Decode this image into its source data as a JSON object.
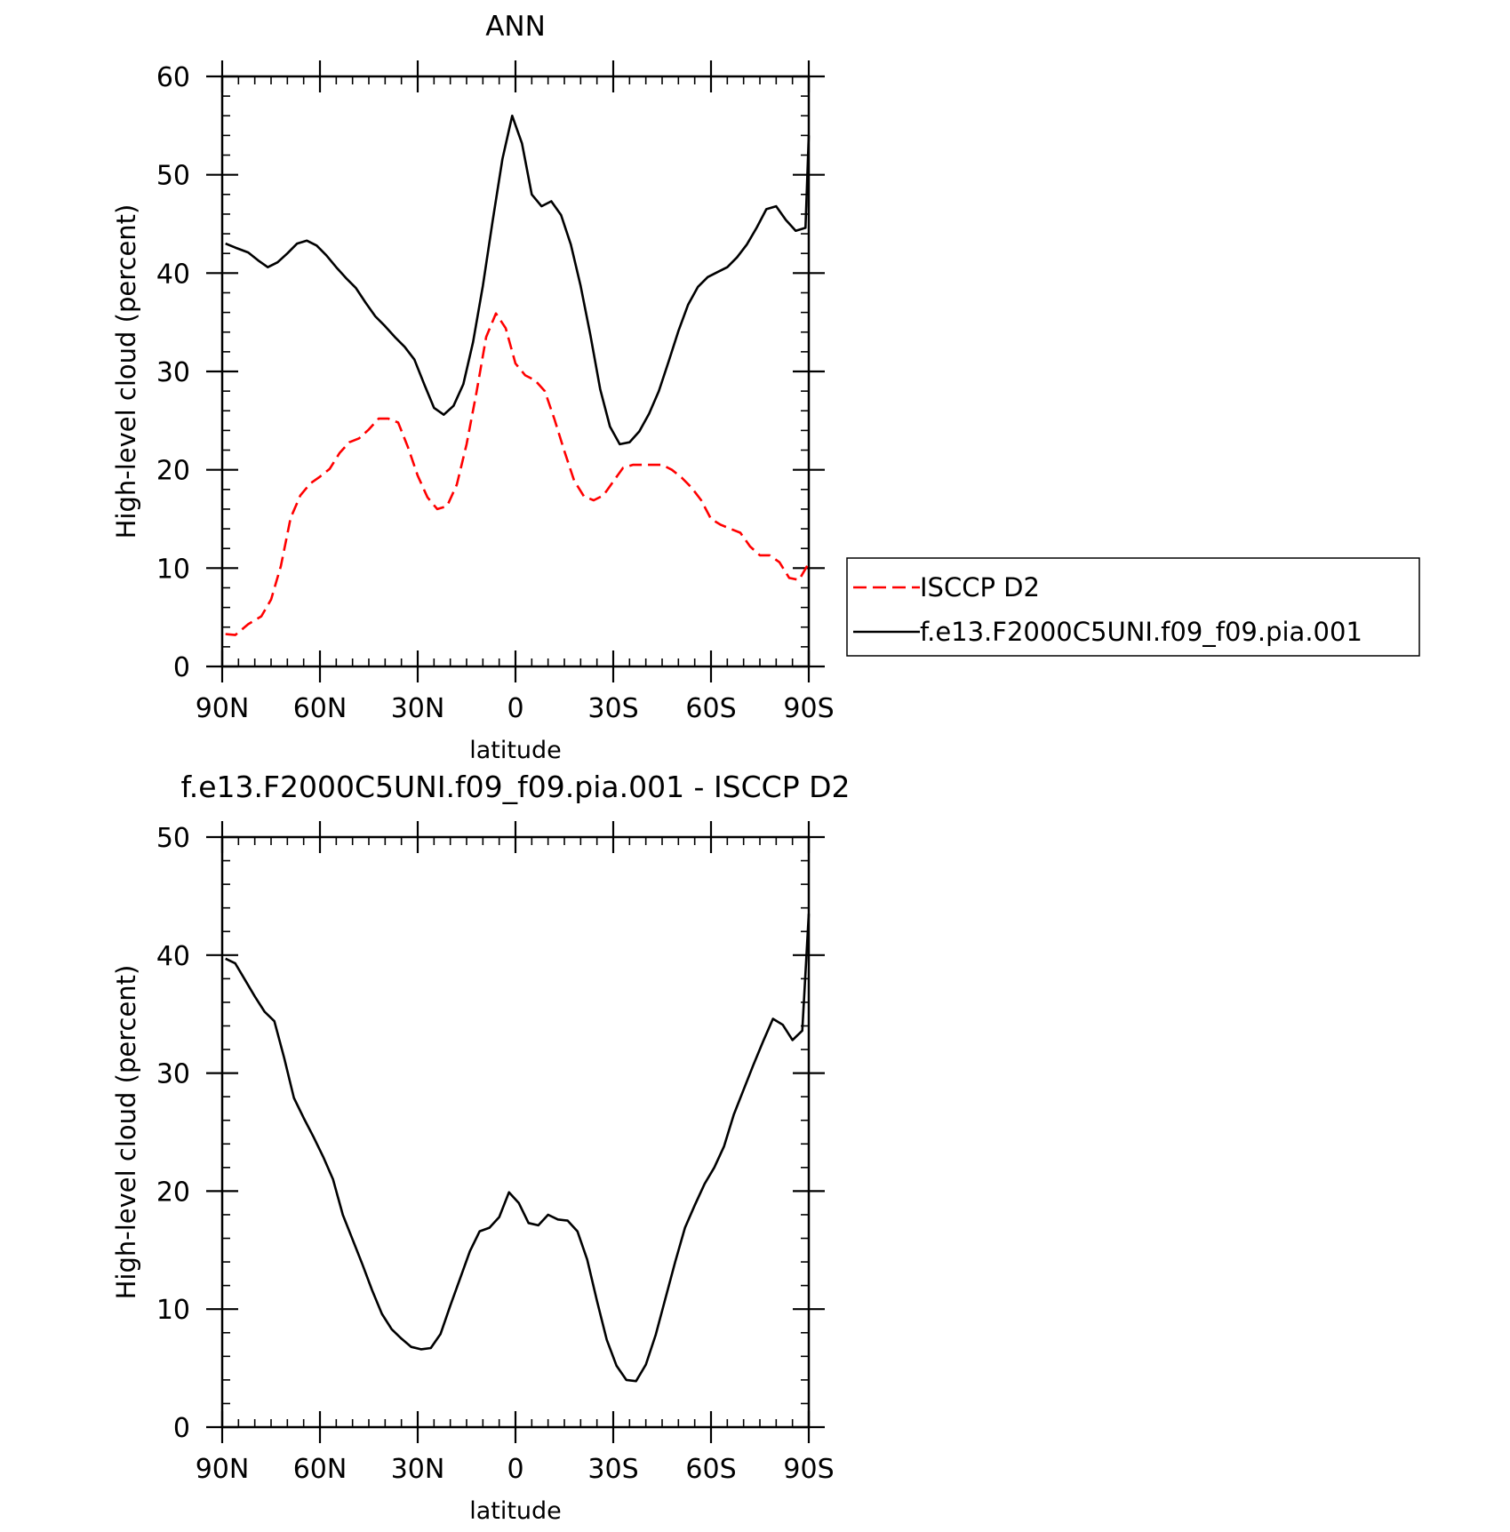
{
  "chart_data": [
    {
      "type": "line",
      "title": "ANN",
      "xlabel": "latitude",
      "ylabel": "High-level cloud (percent)",
      "xlim": [
        -90,
        90
      ],
      "ylim": [
        0,
        60
      ],
      "x_direction": "north-to-south",
      "yticks": [
        0,
        10,
        20,
        30,
        40,
        50,
        60
      ],
      "xticks": [
        -90,
        -60,
        -30,
        0,
        30,
        60,
        90
      ],
      "xtick_labels": [
        "90N",
        "60N",
        "30N",
        "0",
        "30S",
        "60S",
        "90S"
      ],
      "grid": false,
      "legend_position": "right",
      "series": [
        {
          "name": "ISCCP D2",
          "color": "#ff0000",
          "dash": "dashed",
          "points": [
            [
              -89,
              3.3
            ],
            [
              -86,
              3.2
            ],
            [
              -82,
              4.3
            ],
            [
              -78,
              5.1
            ],
            [
              -75,
              6.8
            ],
            [
              -72,
              10.2
            ],
            [
              -69,
              15.1
            ],
            [
              -66,
              17.4
            ],
            [
              -63,
              18.6
            ],
            [
              -60,
              19.3
            ],
            [
              -57,
              20.1
            ],
            [
              -54,
              21.7
            ],
            [
              -51,
              22.8
            ],
            [
              -48,
              23.2
            ],
            [
              -45,
              24.1
            ],
            [
              -42,
              25.2
            ],
            [
              -39,
              25.2
            ],
            [
              -36,
              24.8
            ],
            [
              -33,
              22.3
            ],
            [
              -30,
              19.4
            ],
            [
              -27,
              17.2
            ],
            [
              -24,
              16.0
            ],
            [
              -21,
              16.3
            ],
            [
              -18,
              18.5
            ],
            [
              -15,
              22.6
            ],
            [
              -12,
              27.8
            ],
            [
              -9,
              33.5
            ],
            [
              -6,
              35.9
            ],
            [
              -3,
              34.4
            ],
            [
              0,
              30.8
            ],
            [
              3,
              29.6
            ],
            [
              6,
              29.1
            ],
            [
              9,
              28.0
            ],
            [
              12,
              25.1
            ],
            [
              15,
              21.9
            ],
            [
              18,
              18.9
            ],
            [
              21,
              17.3
            ],
            [
              24,
              16.9
            ],
            [
              27,
              17.4
            ],
            [
              30,
              18.8
            ],
            [
              33,
              20.2
            ],
            [
              36,
              20.5
            ],
            [
              39,
              20.5
            ],
            [
              42,
              20.5
            ],
            [
              45,
              20.5
            ],
            [
              48,
              20.0
            ],
            [
              51,
              19.2
            ],
            [
              54,
              18.2
            ],
            [
              57,
              16.9
            ],
            [
              60,
              15.0
            ],
            [
              63,
              14.4
            ],
            [
              66,
              14.0
            ],
            [
              69,
              13.6
            ],
            [
              72,
              12.2
            ],
            [
              75,
              11.3
            ],
            [
              78,
              11.3
            ],
            [
              81,
              10.6
            ],
            [
              84,
              9.0
            ],
            [
              87,
              8.8
            ],
            [
              90,
              10.5
            ]
          ]
        },
        {
          "name": "f.e13.F2000C5UNI.f09_f09.pia.001",
          "color": "#000000",
          "dash": "solid",
          "points": [
            [
              -89,
              43.0
            ],
            [
              -86,
              42.6
            ],
            [
              -82,
              42.1
            ],
            [
              -79,
              41.3
            ],
            [
              -76,
              40.6
            ],
            [
              -73,
              41.1
            ],
            [
              -70,
              42.0
            ],
            [
              -67,
              43.0
            ],
            [
              -64,
              43.3
            ],
            [
              -61,
              42.8
            ],
            [
              -58,
              41.8
            ],
            [
              -55,
              40.6
            ],
            [
              -52,
              39.5
            ],
            [
              -49,
              38.5
            ],
            [
              -46,
              37.0
            ],
            [
              -43,
              35.6
            ],
            [
              -40,
              34.6
            ],
            [
              -37,
              33.5
            ],
            [
              -34,
              32.5
            ],
            [
              -31,
              31.2
            ],
            [
              -28,
              28.7
            ],
            [
              -25,
              26.3
            ],
            [
              -22,
              25.6
            ],
            [
              -19,
              26.5
            ],
            [
              -16,
              28.7
            ],
            [
              -13,
              33.0
            ],
            [
              -10,
              38.7
            ],
            [
              -7,
              45.3
            ],
            [
              -4,
              51.6
            ],
            [
              -1,
              56.0
            ],
            [
              2,
              53.2
            ],
            [
              5,
              48.0
            ],
            [
              8,
              46.8
            ],
            [
              11,
              47.3
            ],
            [
              14,
              45.9
            ],
            [
              17,
              42.9
            ],
            [
              20,
              38.7
            ],
            [
              23,
              33.7
            ],
            [
              26,
              28.2
            ],
            [
              29,
              24.4
            ],
            [
              32,
              22.6
            ],
            [
              35,
              22.8
            ],
            [
              38,
              23.9
            ],
            [
              41,
              25.7
            ],
            [
              44,
              28.0
            ],
            [
              47,
              31.0
            ],
            [
              50,
              34.1
            ],
            [
              53,
              36.8
            ],
            [
              56,
              38.6
            ],
            [
              59,
              39.6
            ],
            [
              62,
              40.1
            ],
            [
              65,
              40.6
            ],
            [
              68,
              41.6
            ],
            [
              71,
              42.9
            ],
            [
              74,
              44.6
            ],
            [
              77,
              46.5
            ],
            [
              80,
              46.8
            ],
            [
              83,
              45.4
            ],
            [
              86,
              44.3
            ],
            [
              89,
              44.6
            ],
            [
              90,
              54.0
            ]
          ]
        }
      ]
    },
    {
      "type": "line",
      "title": "f.e13.F2000C5UNI.f09_f09.pia.001 - ISCCP D2",
      "xlabel": "latitude",
      "ylabel": "High-level cloud (percent)",
      "xlim": [
        -90,
        90
      ],
      "ylim": [
        0,
        50
      ],
      "x_direction": "north-to-south",
      "yticks": [
        0,
        10,
        20,
        30,
        40,
        50
      ],
      "xticks": [
        -90,
        -60,
        -30,
        0,
        30,
        60,
        90
      ],
      "xtick_labels": [
        "90N",
        "60N",
        "30N",
        "0",
        "30S",
        "60S",
        "90S"
      ],
      "grid": false,
      "series": [
        {
          "color": "#000000",
          "dash": "solid",
          "points": [
            [
              -89,
              39.7
            ],
            [
              -86,
              39.3
            ],
            [
              -83,
              37.9
            ],
            [
              -80,
              36.5
            ],
            [
              -77,
              35.2
            ],
            [
              -74,
              34.4
            ],
            [
              -71,
              31.3
            ],
            [
              -68,
              27.9
            ],
            [
              -65,
              26.2
            ],
            [
              -62,
              24.6
            ],
            [
              -59,
              22.9
            ],
            [
              -56,
              21.0
            ],
            [
              -53,
              18.0
            ],
            [
              -50,
              15.9
            ],
            [
              -47,
              13.8
            ],
            [
              -44,
              11.6
            ],
            [
              -41,
              9.6
            ],
            [
              -38,
              8.3
            ],
            [
              -35,
              7.5
            ],
            [
              -32,
              6.8
            ],
            [
              -29,
              6.6
            ],
            [
              -26,
              6.7
            ],
            [
              -23,
              7.9
            ],
            [
              -20,
              10.3
            ],
            [
              -17,
              12.6
            ],
            [
              -14,
              14.9
            ],
            [
              -11,
              16.6
            ],
            [
              -8,
              16.9
            ],
            [
              -5,
              17.8
            ],
            [
              -2,
              19.9
            ],
            [
              1,
              19.0
            ],
            [
              4,
              17.3
            ],
            [
              7,
              17.1
            ],
            [
              10,
              18.0
            ],
            [
              13,
              17.6
            ],
            [
              16,
              17.5
            ],
            [
              19,
              16.6
            ],
            [
              22,
              14.2
            ],
            [
              25,
              10.7
            ],
            [
              28,
              7.4
            ],
            [
              31,
              5.2
            ],
            [
              34,
              4.0
            ],
            [
              37,
              3.9
            ],
            [
              40,
              5.3
            ],
            [
              43,
              7.8
            ],
            [
              46,
              10.9
            ],
            [
              49,
              14.0
            ],
            [
              52,
              16.9
            ],
            [
              55,
              18.8
            ],
            [
              58,
              20.6
            ],
            [
              61,
              22.0
            ],
            [
              64,
              23.8
            ],
            [
              67,
              26.5
            ],
            [
              70,
              28.6
            ],
            [
              73,
              30.7
            ],
            [
              76,
              32.7
            ],
            [
              79,
              34.6
            ],
            [
              82,
              34.1
            ],
            [
              85,
              32.8
            ],
            [
              88,
              33.6
            ],
            [
              90,
              43.5
            ]
          ]
        }
      ]
    }
  ]
}
